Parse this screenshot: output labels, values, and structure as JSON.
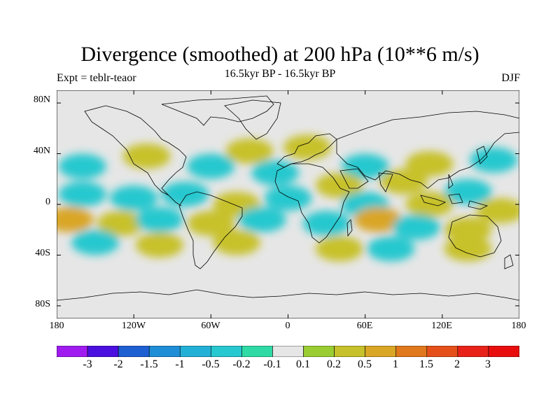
{
  "title": "Divergence (smoothed) at 200 hPa (10**6 m/s)",
  "subtitle": "16.5kyr BP - 16.5kyr BP",
  "left_label": "Expt = teblr-teaor",
  "right_label": "DJF",
  "y_ticks": [
    "80N",
    "40N",
    "0",
    "40S",
    "80S"
  ],
  "x_ticks": [
    "180",
    "120W",
    "60W",
    "0",
    "60E",
    "120E",
    "180"
  ],
  "colorbar": {
    "labels": [
      "-3",
      "-2",
      "-1.5",
      "-1",
      "-0.5",
      "-0.2",
      "-0.1",
      "0.1",
      "0.2",
      "0.5",
      "1",
      "1.5",
      "2",
      "3"
    ],
    "colors": [
      "#9f1bf0",
      "#4b0fe0",
      "#1e5fd2",
      "#1e8ed6",
      "#23b0d6",
      "#27c8cf",
      "#2fdaa5",
      "#e6e6e6",
      "#9acd32",
      "#c7c12b",
      "#d9a625",
      "#e0781d",
      "#e5501a",
      "#e82218",
      "#e80e0e"
    ]
  },
  "chart_data": {
    "type": "heatmap",
    "title": "Divergence (smoothed) at 200 hPa (10**6 m/s)",
    "variable": "divergence difference",
    "units": "10**6 m/s",
    "season": "DJF",
    "xlim": [
      -180,
      180
    ],
    "ylim": [
      -90,
      90
    ],
    "x_tick_values": [
      -180,
      -120,
      -60,
      0,
      60,
      120,
      180
    ],
    "y_tick_values": [
      80,
      40,
      0,
      -40,
      -80
    ],
    "levels": [
      -3,
      -2,
      -1.5,
      -1,
      -0.5,
      -0.2,
      -0.1,
      0.1,
      0.2,
      0.5,
      1,
      1.5,
      2,
      3
    ],
    "blobs": [
      {
        "lon": -30,
        "lat": 42,
        "value": 0.4
      },
      {
        "lon": 15,
        "lat": 45,
        "value": 0.3
      },
      {
        "lon": -60,
        "lat": 30,
        "value": -0.3
      },
      {
        "lon": -110,
        "lat": 38,
        "value": 0.3
      },
      {
        "lon": -160,
        "lat": 30,
        "value": -0.3
      },
      {
        "lon": 160,
        "lat": 35,
        "value": -0.3
      },
      {
        "lon": 110,
        "lat": 32,
        "value": 0.3
      },
      {
        "lon": 60,
        "lat": 30,
        "value": -0.3
      },
      {
        "lon": -10,
        "lat": 25,
        "value": -0.4
      },
      {
        "lon": 40,
        "lat": 15,
        "value": 0.4
      },
      {
        "lon": 90,
        "lat": 18,
        "value": 0.3
      },
      {
        "lon": 140,
        "lat": 10,
        "value": -0.5
      },
      {
        "lon": -120,
        "lat": 5,
        "value": -0.5
      },
      {
        "lon": -160,
        "lat": 8,
        "value": -0.4
      },
      {
        "lon": -80,
        "lat": 8,
        "value": -0.4
      },
      {
        "lon": -40,
        "lat": 0,
        "value": 0.3
      },
      {
        "lon": 0,
        "lat": 5,
        "value": -0.3
      },
      {
        "lon": 60,
        "lat": 0,
        "value": -0.4
      },
      {
        "lon": 110,
        "lat": 0,
        "value": 0.3
      },
      {
        "lon": 165,
        "lat": -5,
        "value": 0.3
      },
      {
        "lon": -170,
        "lat": -12,
        "value": 0.5
      },
      {
        "lon": -130,
        "lat": -15,
        "value": 0.4
      },
      {
        "lon": -100,
        "lat": -12,
        "value": -0.3
      },
      {
        "lon": -60,
        "lat": -15,
        "value": 0.4
      },
      {
        "lon": -20,
        "lat": -12,
        "value": -0.3
      },
      {
        "lon": 30,
        "lat": -15,
        "value": -0.5
      },
      {
        "lon": 70,
        "lat": -12,
        "value": 0.6
      },
      {
        "lon": 100,
        "lat": -18,
        "value": -0.3
      },
      {
        "lon": 140,
        "lat": -20,
        "value": 0.4
      },
      {
        "lon": -150,
        "lat": -30,
        "value": -0.3
      },
      {
        "lon": -100,
        "lat": -32,
        "value": 0.3
      },
      {
        "lon": -40,
        "lat": -30,
        "value": 0.3
      },
      {
        "lon": 40,
        "lat": -35,
        "value": 0.3
      },
      {
        "lon": 80,
        "lat": -35,
        "value": -0.3
      },
      {
        "lon": 140,
        "lat": -35,
        "value": 0.3
      }
    ]
  }
}
